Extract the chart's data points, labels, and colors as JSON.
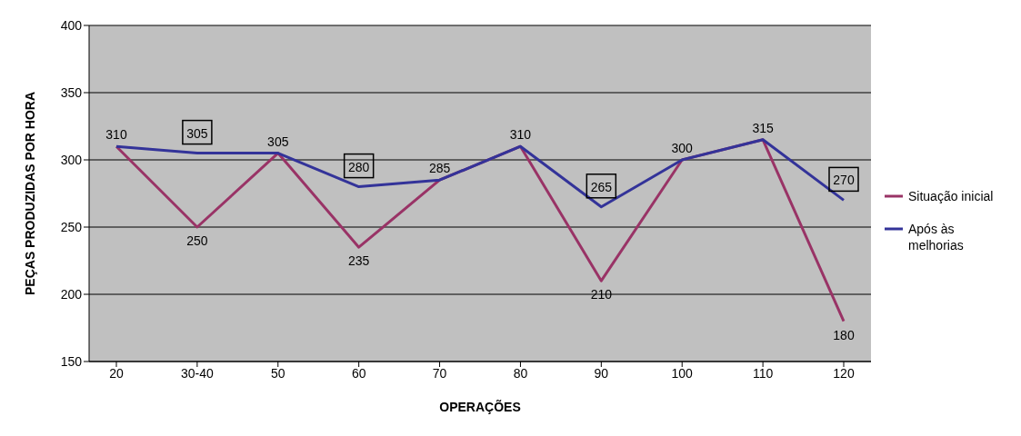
{
  "chart_data": {
    "type": "line",
    "xlabel": "OPERAÇÕES",
    "ylabel": "PEÇAS PRODUZIDAS POR HORA",
    "categories": [
      "20",
      "30-40",
      "50",
      "60",
      "70",
      "80",
      "90",
      "100",
      "110",
      "120"
    ],
    "series": [
      {
        "name": "Situação inicial",
        "color": "#993366",
        "values": [
          310,
          250,
          305,
          235,
          285,
          310,
          210,
          300,
          315,
          180
        ],
        "value_labels": [
          "310",
          "250",
          "305",
          "235",
          "285",
          "310",
          "210",
          "300",
          "315",
          "180"
        ]
      },
      {
        "name": "Após às melhorias",
        "color": "#333399",
        "values": [
          310,
          305,
          305,
          280,
          285,
          310,
          265,
          300,
          315,
          270
        ],
        "value_labels": [
          null,
          "305",
          null,
          "280",
          null,
          null,
          "265",
          null,
          null,
          "270"
        ]
      }
    ],
    "ylim": [
      150,
      400
    ],
    "yticks": [
      150,
      200,
      250,
      300,
      350,
      400
    ],
    "grid": "y",
    "legend": "right",
    "marker": "none",
    "line_style": "solid"
  }
}
